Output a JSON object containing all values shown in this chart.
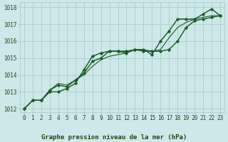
{
  "bg_color": "#cce8e8",
  "grid_color": "#aacccc",
  "line_color": "#1a5c2a",
  "xlim": [
    -0.5,
    23.5
  ],
  "ylim": [
    1011.8,
    1018.3
  ],
  "yticks": [
    1012,
    1013,
    1014,
    1015,
    1016,
    1017,
    1018
  ],
  "xticks": [
    0,
    1,
    2,
    3,
    4,
    5,
    6,
    7,
    8,
    9,
    10,
    11,
    12,
    13,
    14,
    15,
    16,
    17,
    18,
    19,
    20,
    21,
    22,
    23
  ],
  "series": [
    [
      1012.0,
      1012.5,
      1012.5,
      1013.0,
      1013.0,
      1013.2,
      1013.5,
      1014.3,
      1015.1,
      1015.3,
      1015.4,
      1015.4,
      1015.3,
      1015.5,
      1015.5,
      1015.2,
      1016.0,
      1016.6,
      1017.3,
      1017.3,
      1017.3,
      1017.6,
      1017.9,
      1017.5
    ],
    [
      1012.0,
      1012.5,
      1012.5,
      1013.1,
      1013.4,
      1013.3,
      1013.7,
      1014.1,
      1014.8,
      1015.0,
      1015.4,
      1015.4,
      1015.4,
      1015.5,
      1015.4,
      1015.4,
      1015.4,
      1015.5,
      1016.0,
      1016.8,
      1017.2,
      1017.3,
      1017.4,
      1017.5
    ],
    [
      1012.0,
      1012.5,
      1012.5,
      1013.1,
      1013.5,
      1013.4,
      1013.7,
      1014.0,
      1014.5,
      1014.9,
      1015.1,
      1015.2,
      1015.3,
      1015.5,
      1015.5,
      1015.4,
      1015.5,
      1016.2,
      1016.8,
      1017.1,
      1017.3,
      1017.4,
      1017.5,
      1017.5
    ]
  ],
  "marker_indices_s0": [
    0,
    1,
    2,
    3,
    4,
    5,
    6,
    7,
    8,
    9,
    10,
    11,
    12,
    13,
    14,
    15,
    16,
    17,
    18,
    19,
    20,
    21,
    22,
    23
  ],
  "marker_indices_s1": [
    0,
    1,
    2,
    3,
    4,
    5,
    6,
    7,
    8,
    9,
    10,
    11,
    12,
    13,
    14,
    15,
    16,
    17,
    18,
    19,
    20,
    21,
    22,
    23
  ],
  "tick_fontsize": 5.5,
  "label_text": "Graphe pression niveau de la mer (hPa)",
  "label_fontsize": 6.5
}
